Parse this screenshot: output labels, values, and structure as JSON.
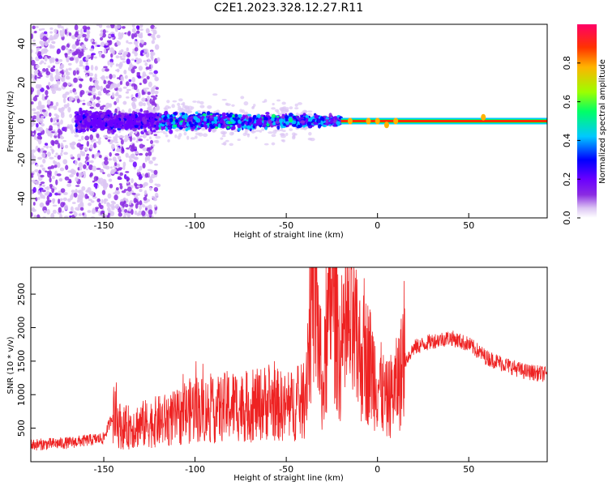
{
  "title": "C2E1.2023.328.12.27.R11",
  "colorbar": {
    "label": "Normalized spectral amplitude",
    "ticks": [
      "0.0",
      "0.2",
      "0.4",
      "0.6",
      "0.8"
    ],
    "tick_values": [
      0.0,
      0.2,
      0.4,
      0.6,
      0.8
    ],
    "colors": [
      "#ffffff",
      "#dcc6f3",
      "#8a2be2",
      "#6a00ff",
      "#0000ff",
      "#00c8ff",
      "#00ff66",
      "#9cff00",
      "#ffb300",
      "#ff3300",
      "#ff0066"
    ]
  },
  "chart_data": [
    {
      "type": "heatmap",
      "xlabel": "Height of straight line (km)",
      "ylabel": "Frequency (Hz)",
      "xlim": [
        -190,
        93
      ],
      "ylim": [
        -50,
        50
      ],
      "xticks": [
        -150,
        -100,
        -50,
        0,
        50
      ],
      "yticks": [
        -40,
        -20,
        0,
        20,
        40
      ],
      "grid": false,
      "series": [
        {
          "description_key": "sparse-scatter",
          "x_range": [
            -190,
            -125
          ],
          "frequency_range": [
            -50,
            50
          ],
          "amplitude": 0.15
        },
        {
          "description_key": "noisy-band",
          "x_range": [
            -160,
            -20
          ],
          "frequency_spread": [
            -10,
            10
          ],
          "amplitude": 0.3
        },
        {
          "description_key": "steady-line",
          "x_range": [
            -20,
            93
          ],
          "frequency": 0,
          "amplitude": 0.9
        }
      ]
    },
    {
      "type": "line",
      "xlabel": "Height of straight line (km)",
      "ylabel": "SNR (10 * v/v)",
      "xlim": [
        -190,
        93
      ],
      "ylim": [
        0,
        2900
      ],
      "xticks": [
        -150,
        -100,
        -50,
        0,
        50
      ],
      "yticks": [
        500,
        1000,
        1500,
        2000,
        2500
      ],
      "grid": false,
      "series": [
        {
          "color": "#ee2222",
          "x": [
            -190,
            -170,
            -150,
            -145,
            -140,
            -130,
            -120,
            -110,
            -100,
            -90,
            -80,
            -70,
            -60,
            -50,
            -40,
            -35,
            -30,
            -25,
            -20,
            -15,
            -10,
            -5,
            0,
            5,
            10,
            15,
            20,
            30,
            40,
            50,
            60,
            70,
            80,
            93
          ],
          "y": [
            250,
            280,
            350,
            700,
            500,
            550,
            600,
            650,
            800,
            750,
            850,
            800,
            900,
            800,
            900,
            2900,
            1000,
            2700,
            1500,
            2000,
            1600,
            1500,
            1200,
            900,
            1100,
            1500,
            1700,
            1800,
            1850,
            1750,
            1550,
            1450,
            1350,
            1300
          ]
        }
      ]
    }
  ]
}
